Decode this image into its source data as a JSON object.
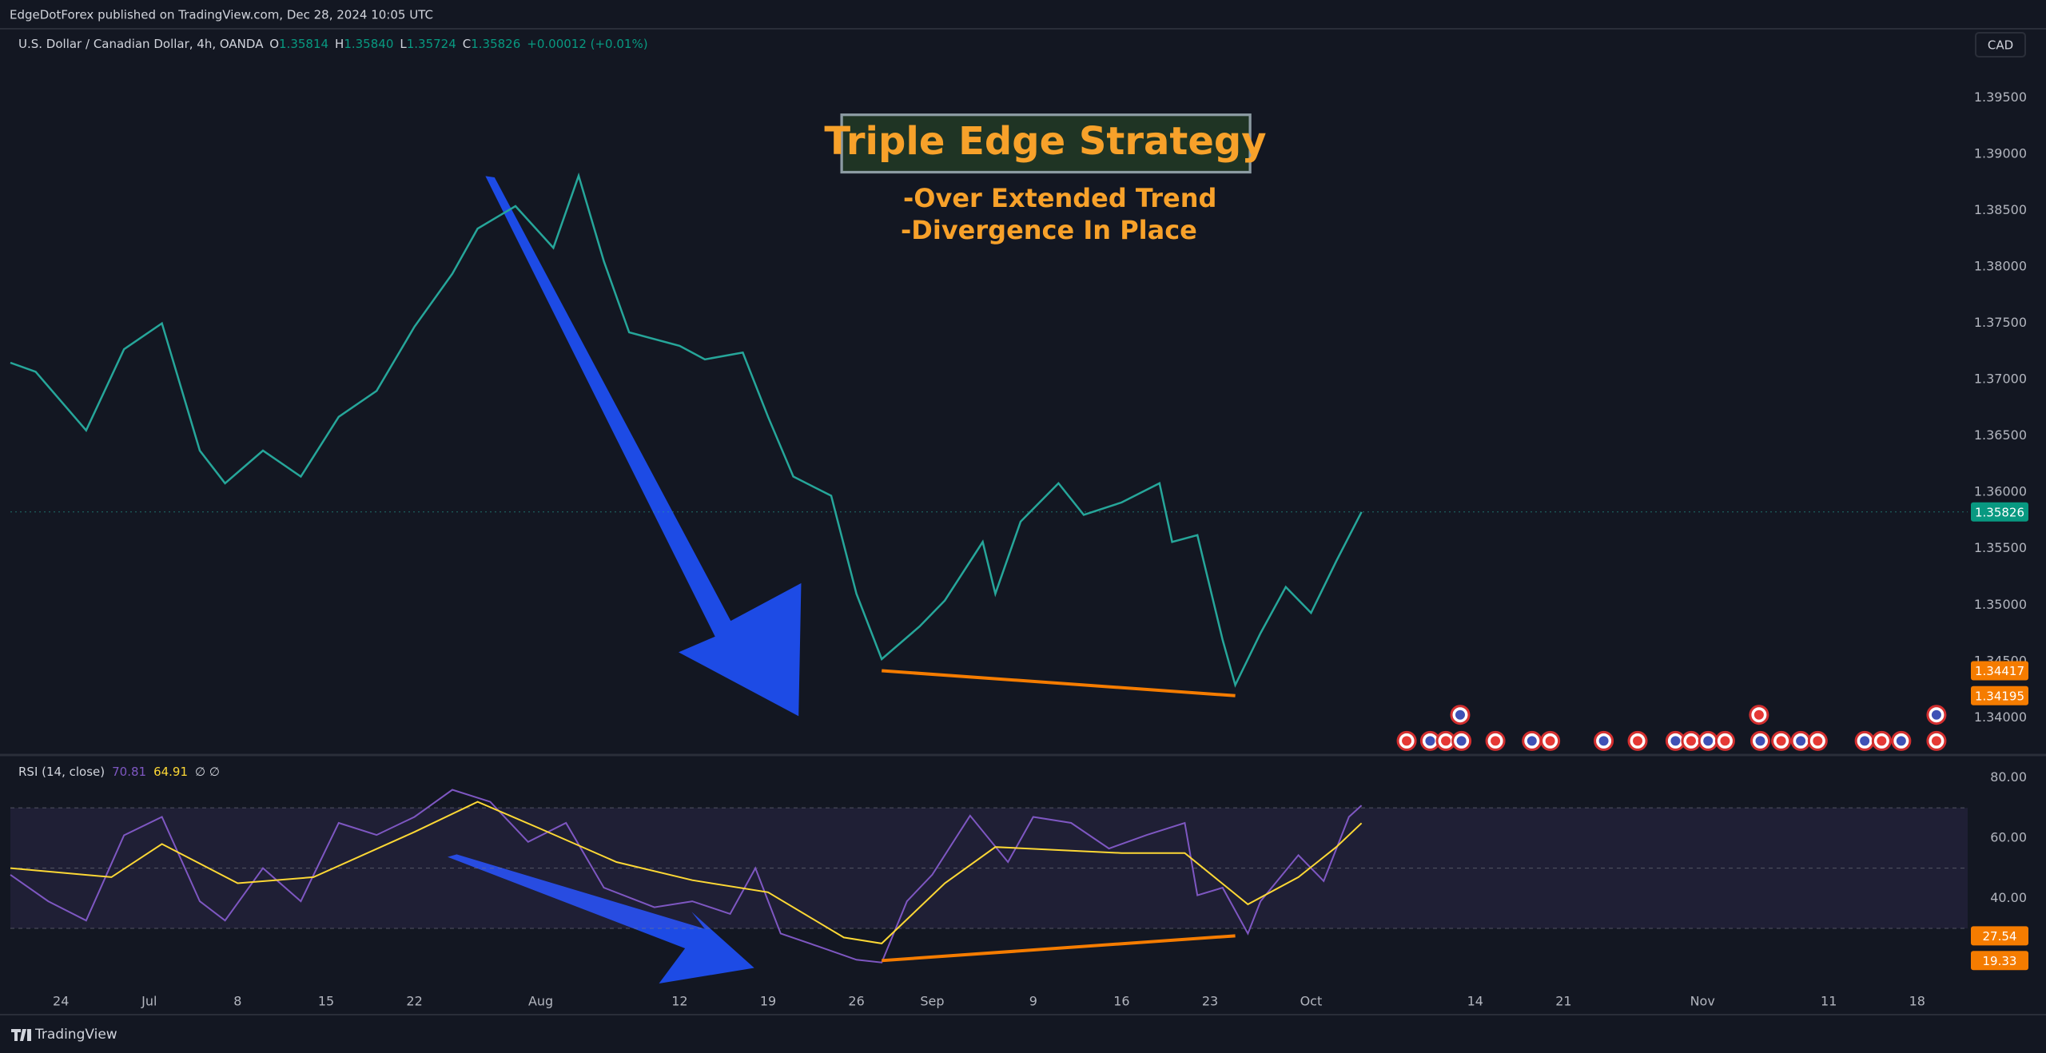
{
  "header": {
    "text": "EdgeDotForex published on TradingView.com, Dec 28, 2024 10:05 UTC"
  },
  "symbol": {
    "name": "U.S. Dollar / Canadian Dollar, 4h, OANDA",
    "open_key": "O",
    "open": "1.35814",
    "high_key": "H",
    "high": "1.35840",
    "low_key": "L",
    "low": "1.35724",
    "close_key": "C",
    "change": "+0.00012 (+0.01%)",
    "currency": "CAD"
  },
  "annotation": {
    "title": "Triple Edge Strategy",
    "lines": [
      "-Over Extended Trend",
      "-Divergence In Place"
    ]
  },
  "footer": {
    "brand": "TradingView"
  },
  "chart_data": [
    {
      "type": "line",
      "color": "#26a69a",
      "x": [
        172,
        174,
        178,
        181,
        184,
        187,
        189,
        192,
        195,
        198,
        201,
        204,
        207,
        209,
        212,
        215,
        217,
        219,
        221,
        225,
        227,
        230,
        232,
        234,
        237,
        239,
        241,
        244,
        246,
        249,
        250,
        252,
        255,
        257,
        260,
        263,
        264,
        266,
        268,
        269,
        271,
        273,
        275,
        277,
        279
      ],
      "values": [
        1.3715,
        1.3707,
        1.3655,
        1.3727,
        1.375,
        1.3637,
        1.3608,
        1.3637,
        1.3614,
        1.3667,
        1.369,
        1.3747,
        1.3794,
        1.3834,
        1.3854,
        1.3817,
        1.3881,
        1.3805,
        1.3742,
        1.373,
        1.3718,
        1.3724,
        1.3667,
        1.3614,
        1.3597,
        1.351,
        1.3452,
        1.3481,
        1.3504,
        1.3556,
        1.351,
        1.3574,
        1.3608,
        1.358,
        1.3591,
        1.3608,
        1.3556,
        1.3562,
        1.3469,
        1.3429,
        1.3475,
        1.3516,
        1.3493,
        1.3539,
        1.35826
      ],
      "xlim": [
        172,
        327
      ],
      "ylim": [
        1.33676,
        1.40114
      ],
      "yticks": [
        {
          "value": 1.34,
          "label": "1.34000"
        },
        {
          "value": 1.345,
          "label": "1.34500"
        },
        {
          "value": 1.35,
          "label": "1.35000"
        },
        {
          "value": 1.355,
          "label": "1.35500"
        },
        {
          "value": 1.36,
          "label": "1.36000"
        },
        {
          "value": 1.365,
          "label": "1.36500"
        },
        {
          "value": 1.37,
          "label": "1.37000"
        },
        {
          "value": 1.375,
          "label": "1.37500"
        },
        {
          "value": 1.38,
          "label": "1.38000"
        },
        {
          "value": 1.385,
          "label": "1.38500"
        },
        {
          "value": 1.39,
          "label": "1.39000"
        },
        {
          "value": 1.395,
          "label": "1.39500"
        }
      ],
      "grid": false,
      "trendline": {
        "x": [
          241,
          269
        ],
        "values": [
          1.34417,
          1.34195
        ],
        "color": "#f57c00"
      }
    },
    {
      "type": "line",
      "title": "RSI (14, close)",
      "legend_extra": "∅ ∅",
      "series": [
        {
          "color": "#7e57c2",
          "x": [
            172,
            175,
            178,
            181,
            184,
            187,
            189,
            192,
            195,
            198,
            201,
            204,
            207,
            210,
            213,
            216,
            219,
            223,
            226,
            229,
            231,
            233,
            236,
            239,
            241,
            243,
            245,
            248,
            251,
            253,
            256,
            259,
            262,
            265,
            266,
            268,
            270,
            271,
            274,
            276,
            278,
            279
          ],
          "values": [
            47.8,
            39,
            32.6,
            60.9,
            67,
            39,
            32.6,
            50,
            39,
            65,
            61,
            67,
            76,
            72,
            58.7,
            65,
            43.5,
            37,
            39,
            34.8,
            50,
            28.3,
            24,
            19.6,
            18.7,
            39,
            47.8,
            67.4,
            52,
            67,
            65,
            56.5,
            61,
            65,
            41,
            43.5,
            28.3,
            39,
            54.3,
            45.7,
            67,
            70.81
          ]
        },
        {
          "color": "#fdd835",
          "x": [
            172,
            180,
            184,
            190,
            196,
            204,
            209,
            214,
            220,
            226,
            232,
            238,
            241,
            246,
            250,
            255,
            260,
            265,
            270,
            274,
            277,
            279
          ],
          "values": [
            50,
            47,
            58,
            45,
            47,
            62,
            72,
            63,
            52,
            46,
            42,
            27,
            25,
            45,
            57,
            56,
            55,
            55,
            38,
            47,
            57,
            64.91
          ]
        }
      ],
      "bands": [
        30,
        50,
        70
      ],
      "xlim": [
        172,
        327
      ],
      "ylim": [
        10.4,
        87
      ],
      "yticks": [
        {
          "value": 40,
          "label": "40.00"
        },
        {
          "value": 60,
          "label": "60.00"
        },
        {
          "value": 80,
          "label": "80.00"
        }
      ],
      "xticks": [
        {
          "value": 176,
          "label": "24"
        },
        {
          "value": 183,
          "label": "Jul"
        },
        {
          "value": 190,
          "label": "8"
        },
        {
          "value": 197,
          "label": "15"
        },
        {
          "value": 204,
          "label": "22"
        },
        {
          "value": 214,
          "label": "Aug"
        },
        {
          "value": 225,
          "label": "12"
        },
        {
          "value": 232,
          "label": "19"
        },
        {
          "value": 239,
          "label": "26"
        },
        {
          "value": 245,
          "label": "Sep"
        },
        {
          "value": 253,
          "label": "9"
        },
        {
          "value": 260,
          "label": "16"
        },
        {
          "value": 267,
          "label": "23"
        },
        {
          "value": 275,
          "label": "Oct"
        },
        {
          "value": 288,
          "label": "14"
        },
        {
          "value": 295,
          "label": "21"
        },
        {
          "value": 306,
          "label": "Nov"
        },
        {
          "value": 316,
          "label": "11"
        },
        {
          "value": 323,
          "label": "18"
        }
      ],
      "trendline": {
        "x": [
          241,
          269
        ],
        "values": [
          19.33,
          27.54
        ],
        "color": "#f57c00"
      }
    }
  ]
}
